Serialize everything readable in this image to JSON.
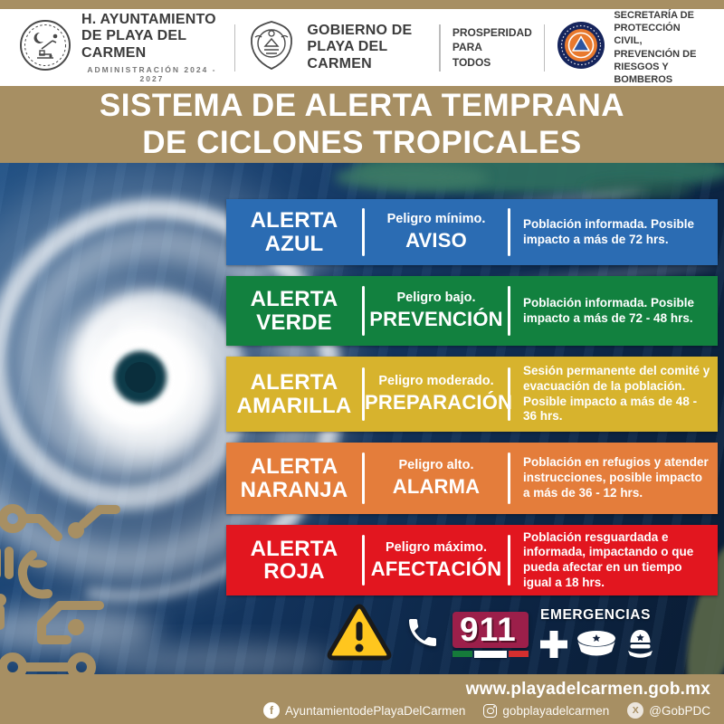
{
  "colors": {
    "tan": "#a78f63",
    "header_text": "#3c3c3c",
    "alert_blue": "#2b6cb3",
    "alert_green": "#12813f",
    "alert_yellow": "#d7b32d",
    "alert_orange": "#e47d3b",
    "alert_red": "#e2161f",
    "badge_911_bg": "#9c1f4a",
    "flag_green": "#157a3a",
    "flag_red": "#d32f2f",
    "warning_yellow": "#ffc61e"
  },
  "header": {
    "municipality": {
      "name": "H. AYUNTAMIENTO\nDE PLAYA DEL CARMEN",
      "administration": "ADMINISTRACIÓN 2024 - 2027"
    },
    "government": {
      "name": "GOBIERNO DE\nPLAYA DEL CARMEN"
    },
    "motto": "PROSPERIDAD\nPARA\nTODOS",
    "secretariat": {
      "name": "SECRETARÍA DE\nPROTECCIÓN CIVIL,\nPREVENCIÓN DE\nRIESGOS Y BOMBEROS"
    }
  },
  "title": "SISTEMA DE ALERTA TEMPRANA\nDE CICLONES TROPICALES",
  "alerts": [
    {
      "name": "ALERTA\nAZUL",
      "danger": "Peligro mínimo.",
      "action": "AVISO",
      "description": "Población informada. Posible impacto a más de 72 hrs.",
      "color": "#2b6cb3"
    },
    {
      "name": "ALERTA\nVERDE",
      "danger": "Peligro bajo.",
      "action": "PREVENCIÓN",
      "description": "Población informada. Posible impacto a más de 72 - 48 hrs.",
      "color": "#12813f"
    },
    {
      "name": "ALERTA\nAMARILLA",
      "danger": "Peligro moderado.",
      "action": "PREPARACIÓN",
      "description": "Sesión permanente del comité y evacuación de la población. Posible impacto a más de 48 - 36 hrs.",
      "color": "#d7b32d"
    },
    {
      "name": "ALERTA\nNARANJA",
      "danger": "Peligro alto.",
      "action": "ALARMA",
      "description": "Población en refugios y atender instrucciones, posible impacto a más de 36 - 12 hrs.",
      "color": "#e47d3b"
    },
    {
      "name": "ALERTA\nROJA",
      "danger": "Peligro máximo.",
      "action": "AFECTACIÓN",
      "description": "Población resguardada e informada, impactando o que pueda afectar en un tiempo igual a 18 hrs.",
      "color": "#e2161f"
    }
  ],
  "emergency": {
    "number": "911",
    "label": "EMERGENCIAS"
  },
  "footer": {
    "website": "www.playadelcarmen.gob.mx",
    "social": [
      {
        "network": "facebook",
        "handle": "AyuntamientodePlayaDelCarmen"
      },
      {
        "network": "instagram",
        "handle": "gobplayadelcarmen"
      },
      {
        "network": "x",
        "handle": "@GobPDC"
      }
    ]
  }
}
